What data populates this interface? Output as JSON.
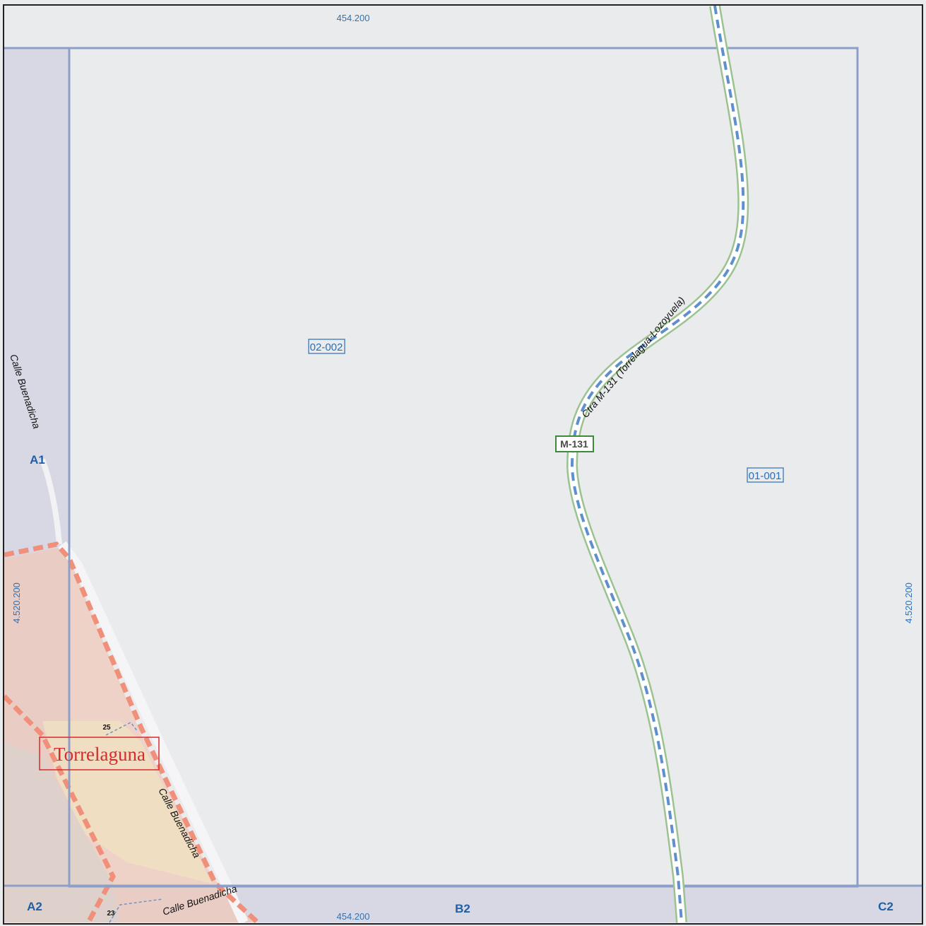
{
  "map": {
    "coordinates": {
      "easting_top": "454.200",
      "easting_bottom": "454.200",
      "northing_left": "4.520.200",
      "northing_right": "4.520.200"
    },
    "grid_cells": [
      "A1",
      "A2",
      "B2",
      "C2"
    ],
    "parcels": [
      "02-002",
      "01-001"
    ],
    "road": {
      "badge": "M-131",
      "name": "Ctra M-131 (Torrelagua-Lozoyuela)"
    },
    "streets": {
      "west": "Calle Buenadicha",
      "south": "Calle Buenadicha",
      "bottom": "Calle Buenadicha"
    },
    "town": "Torrelaguna",
    "house_numbers": [
      "25",
      "23"
    ],
    "colors": {
      "background": "#eaebed",
      "adjacent_sheet": "#d8d8e4",
      "grid_line": "#8d9fc6",
      "road_outline": "#9cc290",
      "road_dash": "#5f8fcf",
      "boundary_dash": "#f0907a",
      "urban_fill": "#efc9bb",
      "yellow_fill": "#f0dfc2",
      "town_label": "#d62b2b",
      "label_blue": "#2f73b5"
    }
  }
}
